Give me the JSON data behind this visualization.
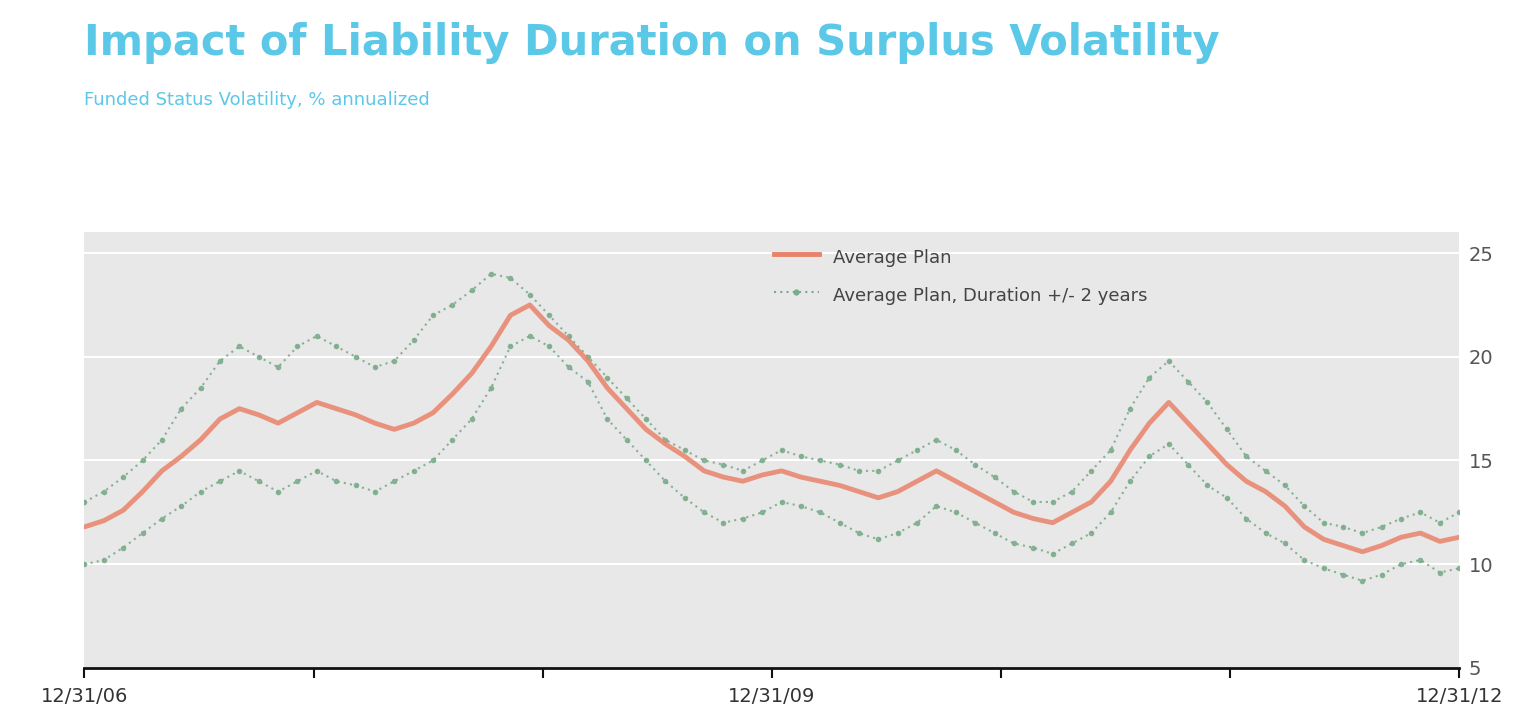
{
  "title": "Impact of Liability Duration on Surplus Volatility",
  "subtitle": "Funded Status Volatility, % annualized",
  "title_color": "#5bc8e8",
  "subtitle_color": "#5bc8e8",
  "fig_bg_color": "#ffffff",
  "plot_bg_color": "#e8e8e8",
  "yticks": [
    5,
    10,
    15,
    20,
    25
  ],
  "ylim": [
    5,
    26
  ],
  "xlim_start": 0,
  "xlim_end": 72,
  "xtick_positions": [
    0,
    36,
    72
  ],
  "xtick_labels": [
    "12/31/06",
    "12/31/09",
    "12/31/12"
  ],
  "avg_plan": [
    11.8,
    12.1,
    12.6,
    13.5,
    14.5,
    15.2,
    16.0,
    17.0,
    17.5,
    17.2,
    16.8,
    17.3,
    17.8,
    17.5,
    17.2,
    16.8,
    16.5,
    16.8,
    17.3,
    18.2,
    19.2,
    20.5,
    22.0,
    22.5,
    21.5,
    20.8,
    19.8,
    18.5,
    17.5,
    16.5,
    15.8,
    15.2,
    14.5,
    14.2,
    14.0,
    14.3,
    14.5,
    14.2,
    14.0,
    13.8,
    13.5,
    13.2,
    13.5,
    14.0,
    14.5,
    14.0,
    13.5,
    13.0,
    12.5,
    12.2,
    12.0,
    12.5,
    13.0,
    14.0,
    15.5,
    16.8,
    17.8,
    16.8,
    15.8,
    14.8,
    14.0,
    13.5,
    12.8,
    11.8,
    11.2,
    10.9,
    10.6,
    10.9,
    11.3,
    11.5,
    11.1,
    11.3
  ],
  "avg_plan_upper": [
    13.0,
    13.5,
    14.2,
    15.0,
    16.0,
    17.5,
    18.5,
    19.8,
    20.5,
    20.0,
    19.5,
    20.5,
    21.0,
    20.5,
    20.0,
    19.5,
    19.8,
    20.8,
    22.0,
    22.5,
    23.2,
    24.0,
    23.8,
    23.0,
    22.0,
    21.0,
    20.0,
    19.0,
    18.0,
    17.0,
    16.0,
    15.5,
    15.0,
    14.8,
    14.5,
    15.0,
    15.5,
    15.2,
    15.0,
    14.8,
    14.5,
    14.5,
    15.0,
    15.5,
    16.0,
    15.5,
    14.8,
    14.2,
    13.5,
    13.0,
    13.0,
    13.5,
    14.5,
    15.5,
    17.5,
    19.0,
    19.8,
    18.8,
    17.8,
    16.5,
    15.2,
    14.5,
    13.8,
    12.8,
    12.0,
    11.8,
    11.5,
    11.8,
    12.2,
    12.5,
    12.0,
    12.5
  ],
  "avg_plan_lower": [
    10.0,
    10.2,
    10.8,
    11.5,
    12.2,
    12.8,
    13.5,
    14.0,
    14.5,
    14.0,
    13.5,
    14.0,
    14.5,
    14.0,
    13.8,
    13.5,
    14.0,
    14.5,
    15.0,
    16.0,
    17.0,
    18.5,
    20.5,
    21.0,
    20.5,
    19.5,
    18.8,
    17.0,
    16.0,
    15.0,
    14.0,
    13.2,
    12.5,
    12.0,
    12.2,
    12.5,
    13.0,
    12.8,
    12.5,
    12.0,
    11.5,
    11.2,
    11.5,
    12.0,
    12.8,
    12.5,
    12.0,
    11.5,
    11.0,
    10.8,
    10.5,
    11.0,
    11.5,
    12.5,
    14.0,
    15.2,
    15.8,
    14.8,
    13.8,
    13.2,
    12.2,
    11.5,
    11.0,
    10.2,
    9.8,
    9.5,
    9.2,
    9.5,
    10.0,
    10.2,
    9.6,
    9.8
  ],
  "line_color_avg": "#e8836a",
  "line_color_band": "#7aab8a",
  "legend_avg_label": "Average Plan",
  "legend_band_label": "Average Plan, Duration +/- 2 years",
  "grid_color": "#ffffff",
  "title_fontsize": 30,
  "subtitle_fontsize": 13,
  "tick_label_fontsize": 14,
  "legend_fontsize": 13
}
